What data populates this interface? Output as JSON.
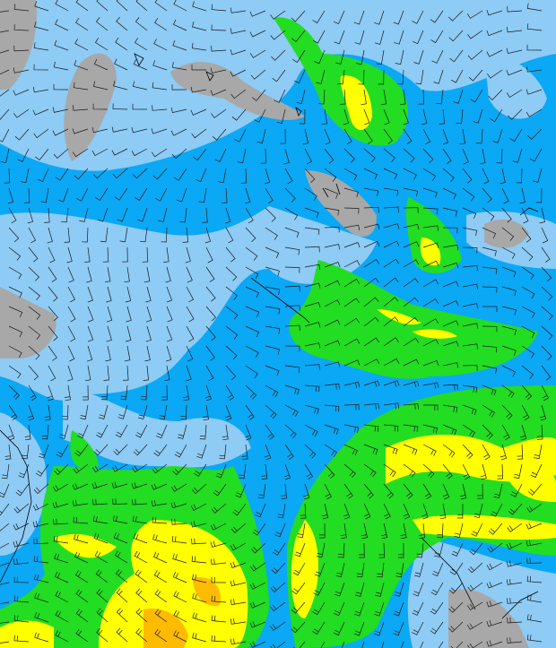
{
  "map": {
    "type": "wind-speed-barbs",
    "colors": {
      "ocean_base": "#0aa8f5",
      "light_wind": "#8ecbf5",
      "land_low": "#a8a8a8",
      "moderate": "#22dd22",
      "strong": "#ffff00",
      "very_strong": "#ffbb00",
      "barb": "#222222",
      "coast": "#000000"
    }
  }
}
